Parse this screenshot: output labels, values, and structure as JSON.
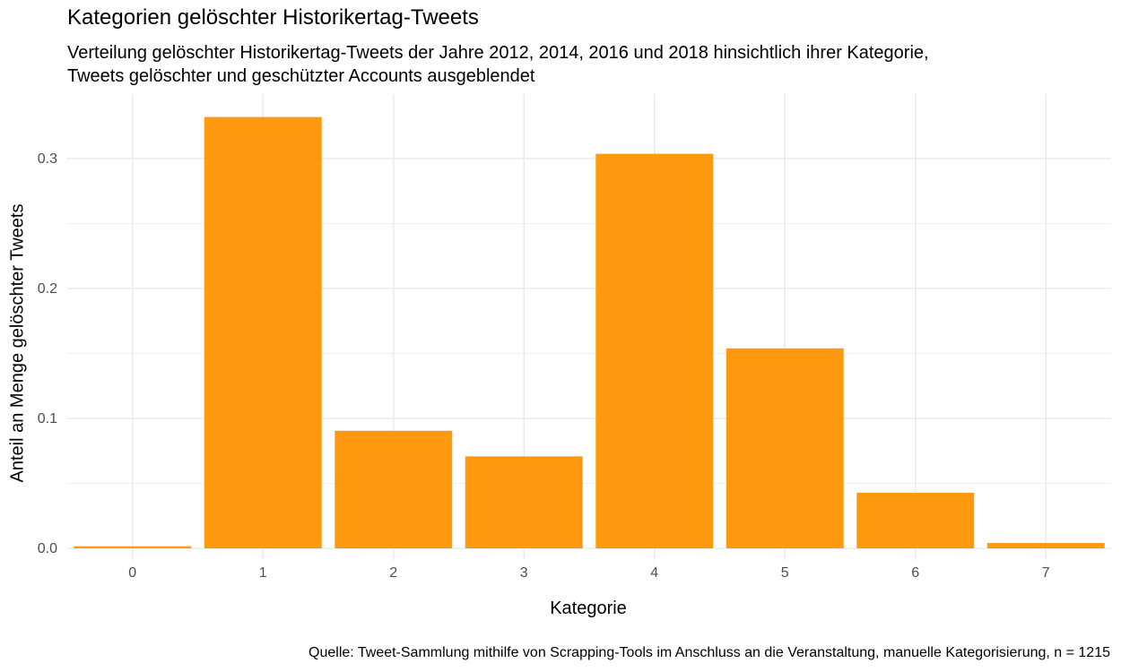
{
  "chart_data": {
    "type": "bar",
    "title": "Kategorien gelöschter Historikertag-Tweets",
    "subtitle_lines": [
      "Verteilung gelöschter Historikertag-Tweets der Jahre 2012, 2014, 2016 und 2018 hinsichtlich ihrer Kategorie,",
      "Tweets gelöschter und geschützter Accounts ausgeblendet"
    ],
    "xlabel": "Kategorie",
    "ylabel": "Anteil an Menge gelöschter Tweets",
    "caption": "Quelle: Tweet-Sammlung mithilfe von Scrapping-Tools im Anschluss an die Veranstaltung, manuelle Kategorisierung, n =  1215",
    "categories": [
      "0",
      "1",
      "2",
      "3",
      "4",
      "5",
      "6",
      "7"
    ],
    "values": [
      0.0016,
      0.332,
      0.0905,
      0.0708,
      0.3037,
      0.1539,
      0.0428,
      0.0041
    ],
    "yticks": [
      "0.0",
      "0.1",
      "0.2",
      "0.3"
    ],
    "ylim": [
      0,
      0.34
    ],
    "grid": true,
    "bar_color": "#FF9910",
    "grid_color": "#EBEBEB"
  }
}
